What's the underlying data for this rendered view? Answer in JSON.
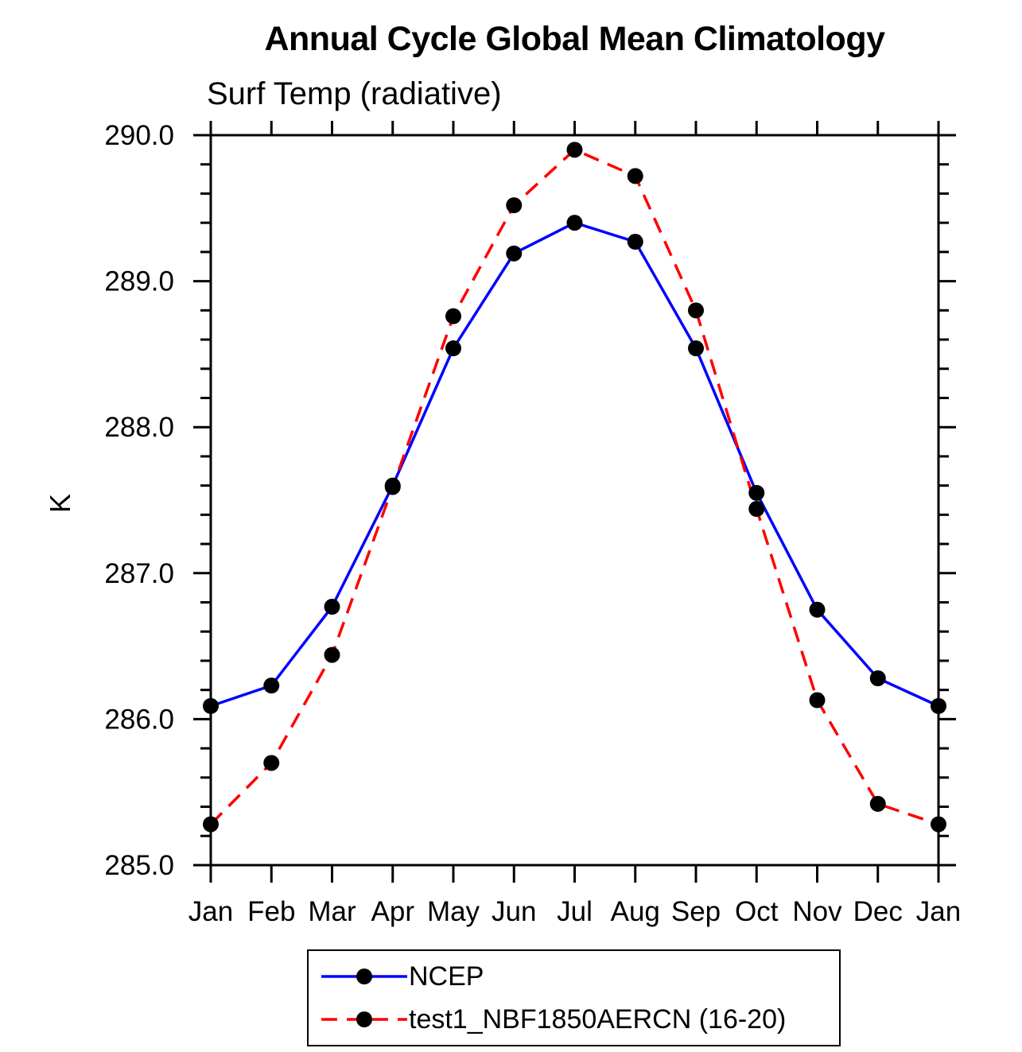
{
  "chart_data": {
    "type": "line",
    "title": "Annual Cycle Global Mean Climatology",
    "subtitle": "Surf Temp (radiative)",
    "ylabel": "K",
    "xlabel": "",
    "categories": [
      "Jan",
      "Feb",
      "Mar",
      "Apr",
      "May",
      "Jun",
      "Jul",
      "Aug",
      "Sep",
      "Oct",
      "Nov",
      "Dec",
      "Jan"
    ],
    "ylim": [
      285.0,
      290.0
    ],
    "ytick_major_step": 1.0,
    "ytick_minor_step": 0.2,
    "ytick_labels": [
      "285.0",
      "286.0",
      "287.0",
      "288.0",
      "289.0",
      "290.0"
    ],
    "grid": false,
    "frame": "box-with-outward-ticks",
    "legend_position": "bottom-center-boxed",
    "marker": "filled-circle",
    "marker_color": "#000000",
    "axis_color": "#000000",
    "series": [
      {
        "name": "NCEP",
        "color": "#0000ff",
        "style": "solid",
        "values": [
          286.09,
          286.23,
          286.77,
          287.6,
          288.54,
          289.19,
          289.4,
          289.27,
          288.54,
          287.55,
          286.75,
          286.28,
          286.09
        ]
      },
      {
        "name": "test1_NBF1850AERCN (16-20)",
        "color": "#ff0000",
        "style": "dashed",
        "values": [
          285.28,
          285.7,
          286.44,
          287.59,
          288.76,
          289.52,
          289.9,
          289.72,
          288.8,
          287.44,
          286.13,
          285.42,
          285.28
        ]
      }
    ]
  }
}
